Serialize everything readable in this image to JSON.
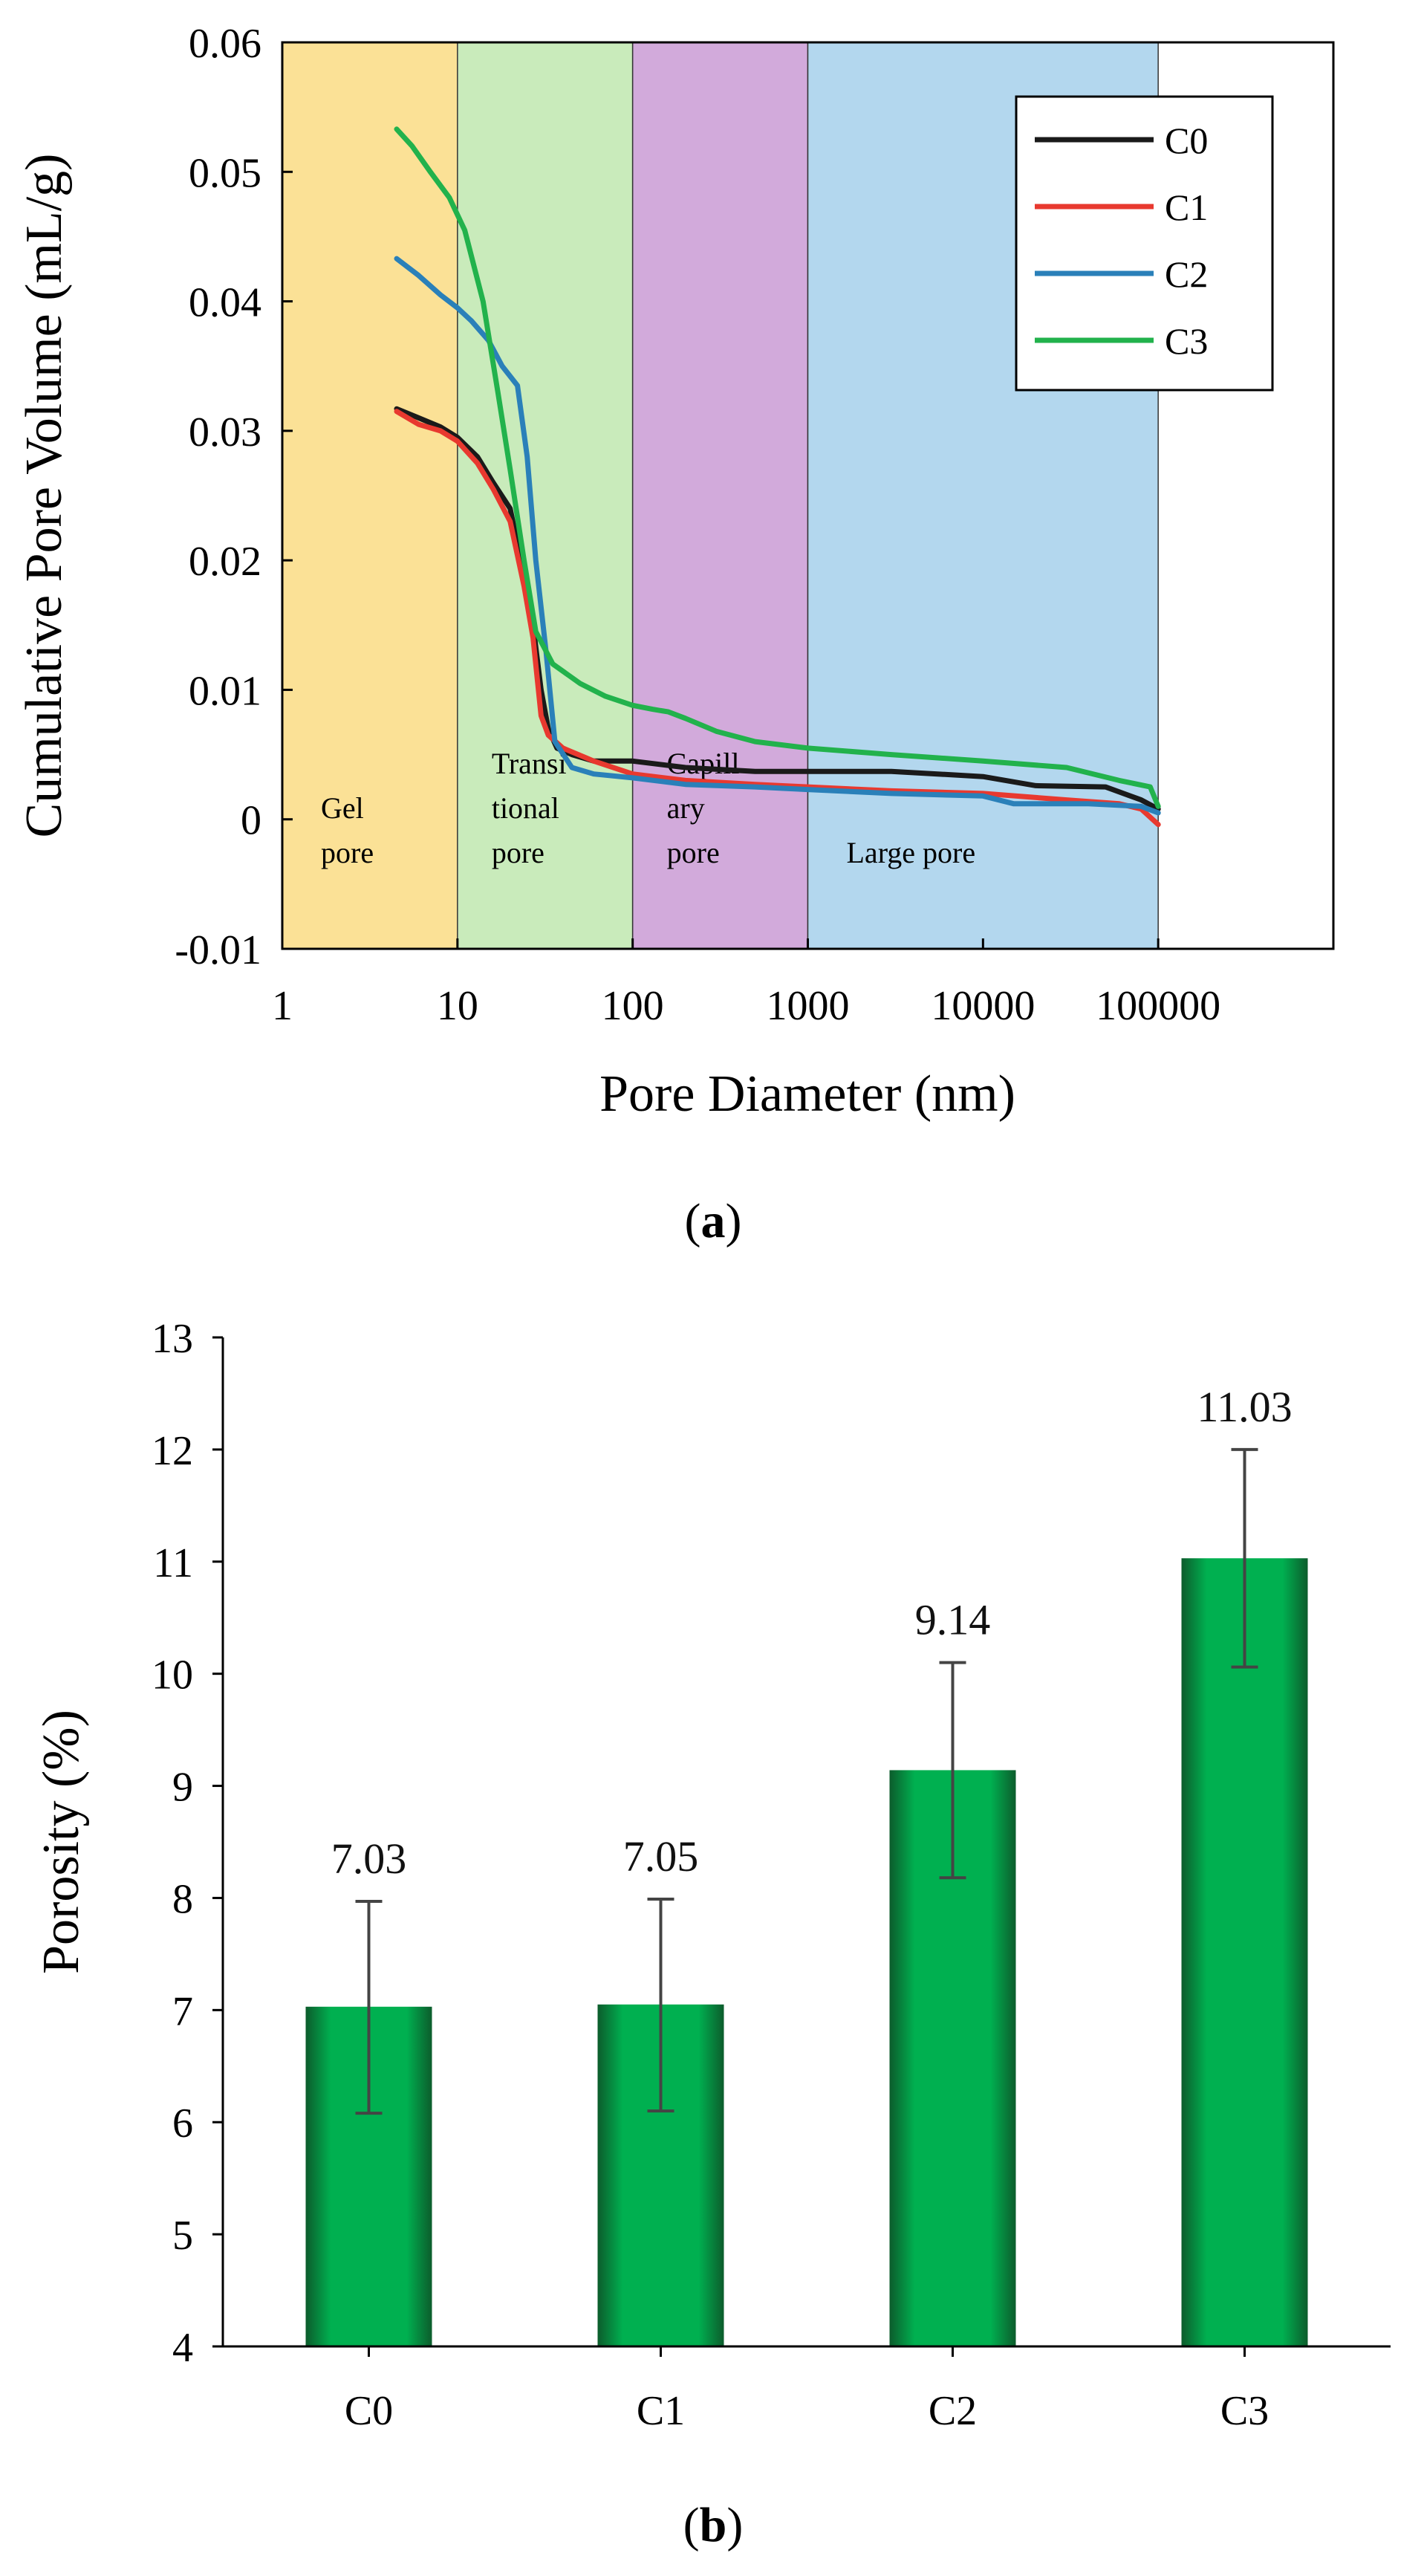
{
  "chart_data": [
    {
      "type": "line",
      "caption_letter": "a",
      "xlabel": "Pore Diameter (nm)",
      "ylabel": "Cumulative Pore Volume  (mL/g)",
      "xscale": "log",
      "xlim": [
        1,
        1000000
      ],
      "ylim": [
        -0.01,
        0.06
      ],
      "xticks": [
        1,
        10,
        100,
        1000,
        10000,
        100000
      ],
      "xtick_labels": [
        "1",
        "10",
        "100",
        "1000",
        "10000",
        "100000"
      ],
      "yticks": [
        -0.01,
        0,
        0.01,
        0.02,
        0.03,
        0.04,
        0.05,
        0.06
      ],
      "ytick_labels": [
        "-0.01",
        "0",
        "0.01",
        "0.02",
        "0.03",
        "0.04",
        "0.05",
        "0.06"
      ],
      "legend_position": "top-right",
      "regions": [
        {
          "name": "Gel pore",
          "lines": [
            "Gel",
            "pore"
          ],
          "x_from": 1,
          "x_to": 10,
          "color": "#fbe196"
        },
        {
          "name": "Transitional pore",
          "lines": [
            "Transi",
            "tional",
            "pore"
          ],
          "x_from": 10,
          "x_to": 100,
          "color": "#c9ebbb"
        },
        {
          "name": "Capillary pore",
          "lines": [
            "Capill",
            "ary",
            "pore"
          ],
          "x_from": 100,
          "x_to": 1000,
          "color": "#d2aadb"
        },
        {
          "name": "Large pore",
          "lines": [
            "Large pore"
          ],
          "x_from": 1000,
          "x_to": 100000,
          "color": "#b3d7ee"
        }
      ],
      "series": [
        {
          "name": "C0",
          "color": "#1a1a1a",
          "points": [
            [
              4.5,
              0.0317
            ],
            [
              6,
              0.031
            ],
            [
              8,
              0.0303
            ],
            [
              10,
              0.0295
            ],
            [
              13,
              0.028
            ],
            [
              16,
              0.026
            ],
            [
              20,
              0.024
            ],
            [
              23,
              0.02
            ],
            [
              27,
              0.015
            ],
            [
              30,
              0.01
            ],
            [
              33,
              0.007
            ],
            [
              37,
              0.0055
            ],
            [
              45,
              0.005
            ],
            [
              60,
              0.0045
            ],
            [
              100,
              0.0045
            ],
            [
              200,
              0.004
            ],
            [
              500,
              0.0037
            ],
            [
              1000,
              0.0037
            ],
            [
              3000,
              0.0037
            ],
            [
              10000,
              0.0033
            ],
            [
              20000,
              0.0026
            ],
            [
              50000,
              0.0025
            ],
            [
              80000,
              0.0015
            ],
            [
              100000,
              0.0008
            ]
          ]
        },
        {
          "name": "C1",
          "color": "#e8392f",
          "points": [
            [
              4.5,
              0.0315
            ],
            [
              6,
              0.0305
            ],
            [
              8,
              0.03
            ],
            [
              10,
              0.0292
            ],
            [
              13,
              0.0275
            ],
            [
              16,
              0.0255
            ],
            [
              20,
              0.023
            ],
            [
              24,
              0.018
            ],
            [
              27,
              0.014
            ],
            [
              30,
              0.008
            ],
            [
              33,
              0.0065
            ],
            [
              40,
              0.0055
            ],
            [
              60,
              0.0045
            ],
            [
              100,
              0.0035
            ],
            [
              200,
              0.003
            ],
            [
              500,
              0.0027
            ],
            [
              1000,
              0.0025
            ],
            [
              3000,
              0.0022
            ],
            [
              10000,
              0.002
            ],
            [
              30000,
              0.0015
            ],
            [
              60000,
              0.0012
            ],
            [
              80000,
              0.0008
            ],
            [
              100000,
              -0.0004
            ]
          ]
        },
        {
          "name": "C2",
          "color": "#2a80b9",
          "points": [
            [
              4.5,
              0.0433
            ],
            [
              6,
              0.042
            ],
            [
              8,
              0.0405
            ],
            [
              10,
              0.0395
            ],
            [
              12,
              0.0385
            ],
            [
              15,
              0.037
            ],
            [
              18,
              0.035
            ],
            [
              22,
              0.0335
            ],
            [
              25,
              0.028
            ],
            [
              28,
              0.02
            ],
            [
              32,
              0.013
            ],
            [
              36,
              0.006
            ],
            [
              45,
              0.004
            ],
            [
              60,
              0.0035
            ],
            [
              100,
              0.0032
            ],
            [
              200,
              0.0027
            ],
            [
              500,
              0.0025
            ],
            [
              1000,
              0.0023
            ],
            [
              3000,
              0.002
            ],
            [
              10000,
              0.0018
            ],
            [
              15000,
              0.0012
            ],
            [
              40000,
              0.0012
            ],
            [
              80000,
              0.001
            ],
            [
              100000,
              0.0005
            ]
          ]
        },
        {
          "name": "C3",
          "color": "#22b24c",
          "points": [
            [
              4.5,
              0.0533
            ],
            [
              5.5,
              0.052
            ],
            [
              7,
              0.05
            ],
            [
              9,
              0.048
            ],
            [
              11,
              0.0455
            ],
            [
              14,
              0.04
            ],
            [
              17,
              0.033
            ],
            [
              20,
              0.027
            ],
            [
              24,
              0.02
            ],
            [
              28,
              0.0145
            ],
            [
              35,
              0.012
            ],
            [
              50,
              0.0105
            ],
            [
              70,
              0.0095
            ],
            [
              100,
              0.0088
            ],
            [
              130,
              0.0085
            ],
            [
              160,
              0.0083
            ],
            [
              200,
              0.0078
            ],
            [
              300,
              0.0068
            ],
            [
              500,
              0.006
            ],
            [
              1000,
              0.0055
            ],
            [
              3000,
              0.005
            ],
            [
              10000,
              0.0045
            ],
            [
              30000,
              0.004
            ],
            [
              60000,
              0.003
            ],
            [
              90000,
              0.0025
            ],
            [
              100000,
              0.001
            ]
          ]
        }
      ]
    },
    {
      "type": "bar",
      "caption_letter": "b",
      "xlabel": "",
      "ylabel": "Porosity (%)",
      "categories": [
        "C0",
        "C1",
        "C2",
        "C3"
      ],
      "values": [
        7.03,
        7.05,
        9.14,
        11.03
      ],
      "value_labels": [
        "7.03",
        "7.05",
        "9.14",
        "11.03"
      ],
      "error_low": [
        6.08,
        6.1,
        8.18,
        10.06
      ],
      "error_high": [
        7.97,
        7.99,
        10.1,
        12.0
      ],
      "ylim": [
        4,
        13
      ],
      "yticks": [
        4,
        5,
        6,
        7,
        8,
        9,
        10,
        11,
        12,
        13
      ],
      "ytick_labels": [
        "4",
        "5",
        "6",
        "7",
        "8",
        "9",
        "10",
        "11",
        "12",
        "13"
      ],
      "bar_color": "#00b050",
      "bar_edge_color": "#0c5c2c"
    }
  ]
}
